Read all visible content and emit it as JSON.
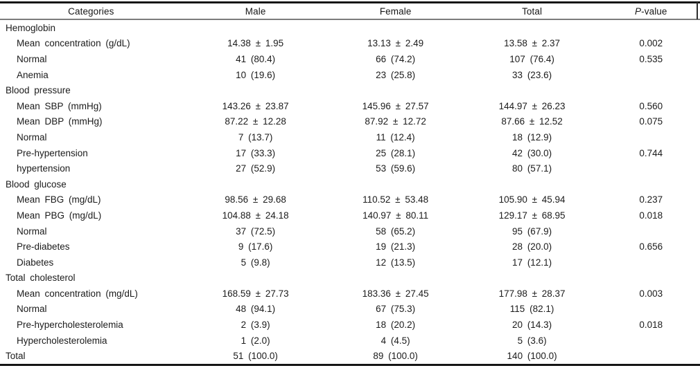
{
  "page": {
    "background": "#ffffff"
  },
  "colors": {
    "text": "#1b1b1b",
    "heavy_rule": "#141414",
    "header_rule": "#7c7c7c"
  },
  "table": {
    "header": {
      "categories": "Categories",
      "male": "Male",
      "female": "Female",
      "total": "Total",
      "p_italic": "P",
      "p_rest": "-value"
    },
    "rows": [
      {
        "label": "Hemoglobin",
        "indent": false,
        "male": "",
        "female": "",
        "total": "",
        "p_value": ""
      },
      {
        "label": "Mean concentration (g/dL)",
        "indent": true,
        "male": "14.38 ± 1.95",
        "female": "13.13 ± 2.49",
        "total": "13.58 ± 2.37",
        "p_value": "0.002"
      },
      {
        "label": "Normal",
        "indent": true,
        "male": "41 (80.4)",
        "female": "66 (74.2)",
        "total": "107 (76.4)",
        "p_value": "0.535"
      },
      {
        "label": "Anemia",
        "indent": true,
        "male": "10 (19.6)",
        "female": "23 (25.8)",
        "total": "33 (23.6)",
        "p_value": ""
      },
      {
        "label": "Blood pressure",
        "indent": false,
        "male": "",
        "female": "",
        "total": "",
        "p_value": ""
      },
      {
        "label": "Mean SBP (mmHg)",
        "indent": true,
        "male": "143.26 ± 23.87",
        "female": "145.96 ± 27.57",
        "total": "144.97 ± 26.23",
        "p_value": "0.560"
      },
      {
        "label": "Mean DBP (mmHg)",
        "indent": true,
        "male": "87.22 ± 12.28",
        "female": "87.92 ± 12.72",
        "total": "87.66 ± 12.52",
        "p_value": "0.075"
      },
      {
        "label": "Normal",
        "indent": true,
        "male": "7 (13.7)",
        "female": "11 (12.4)",
        "total": "18 (12.9)",
        "p_value": ""
      },
      {
        "label": "Pre-hypertension",
        "indent": true,
        "male": "17 (33.3)",
        "female": "25 (28.1)",
        "total": "42 (30.0)",
        "p_value": "0.744"
      },
      {
        "label": "hypertension",
        "indent": true,
        "male": "27 (52.9)",
        "female": "53 (59.6)",
        "total": "80 (57.1)",
        "p_value": ""
      },
      {
        "label": "Blood glucose",
        "indent": false,
        "male": "",
        "female": "",
        "total": "",
        "p_value": ""
      },
      {
        "label": "Mean FBG (mg/dL)",
        "indent": true,
        "male": "98.56 ± 29.68",
        "female": "110.52 ± 53.48",
        "total": "105.90 ± 45.94",
        "p_value": "0.237"
      },
      {
        "label": "Mean PBG (mg/dL)",
        "indent": true,
        "male": "104.88 ± 24.18",
        "female": "140.97 ± 80.11",
        "total": "129.17 ± 68.95",
        "p_value": "0.018"
      },
      {
        "label": "Normal",
        "indent": true,
        "male": "37 (72.5)",
        "female": "58 (65.2)",
        "total": "95 (67.9)",
        "p_value": ""
      },
      {
        "label": "Pre-diabetes",
        "indent": true,
        "male": "9 (17.6)",
        "female": "19 (21.3)",
        "total": "28 (20.0)",
        "p_value": "0.656"
      },
      {
        "label": "Diabetes",
        "indent": true,
        "male": "5 (9.8)",
        "female": "12 (13.5)",
        "total": "17 (12.1)",
        "p_value": ""
      },
      {
        "label": "Total cholesterol",
        "indent": false,
        "male": "",
        "female": "",
        "total": "",
        "p_value": ""
      },
      {
        "label": "Mean concentration (mg/dL)",
        "indent": true,
        "male": "168.59 ± 27.73",
        "female": "183.36 ± 27.45",
        "total": "177.98 ± 28.37",
        "p_value": "0.003"
      },
      {
        "label": "Normal",
        "indent": true,
        "male": "48 (94.1)",
        "female": "67 (75.3)",
        "total": "115 (82.1)",
        "p_value": ""
      },
      {
        "label": "Pre-hypercholesterolemia",
        "indent": true,
        "male": "2 (3.9)",
        "female": "18 (20.2)",
        "total": "20 (14.3)",
        "p_value": "0.018"
      },
      {
        "label": "Hypercholesterolemia",
        "indent": true,
        "male": "1 (2.0)",
        "female": "4 (4.5)",
        "total": "5 (3.6)",
        "p_value": ""
      },
      {
        "label": "Total",
        "indent": false,
        "male": "51 (100.0)",
        "female": "89 (100.0)",
        "total": "140 (100.0)",
        "p_value": ""
      }
    ]
  }
}
